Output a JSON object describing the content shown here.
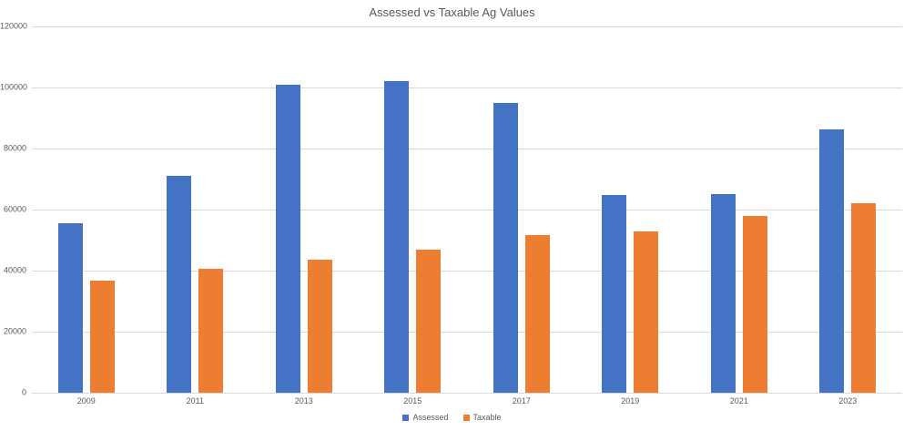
{
  "chart_data": {
    "type": "bar",
    "title": "Assessed vs Taxable Ag Values",
    "categories": [
      "2009",
      "2011",
      "2013",
      "2015",
      "2017",
      "2019",
      "2021",
      "2023"
    ],
    "series": [
      {
        "name": "Assessed",
        "color": "#4472C4",
        "values": [
          55500,
          71000,
          100800,
          102000,
          94800,
          64900,
          65000,
          86200
        ]
      },
      {
        "name": "Taxable",
        "color": "#ED7D31",
        "values": [
          36800,
          40700,
          43600,
          47000,
          51600,
          52900,
          57900,
          62000
        ]
      }
    ],
    "xlabel": "",
    "ylabel": "",
    "ylim": [
      0,
      120000
    ],
    "yticks": [
      0,
      20000,
      40000,
      60000,
      80000,
      100000,
      120000
    ],
    "ytick_labels": [
      "0",
      "20000",
      "40000",
      "60000",
      "80000",
      "100000",
      "120000"
    ],
    "grid": true,
    "legend_position": "bottom"
  },
  "colors": {
    "assessed": "#4472C4",
    "taxable": "#ED7D31",
    "text": "#595959",
    "gridline": "#D9D9D9",
    "background": "#FFFFFF"
  }
}
